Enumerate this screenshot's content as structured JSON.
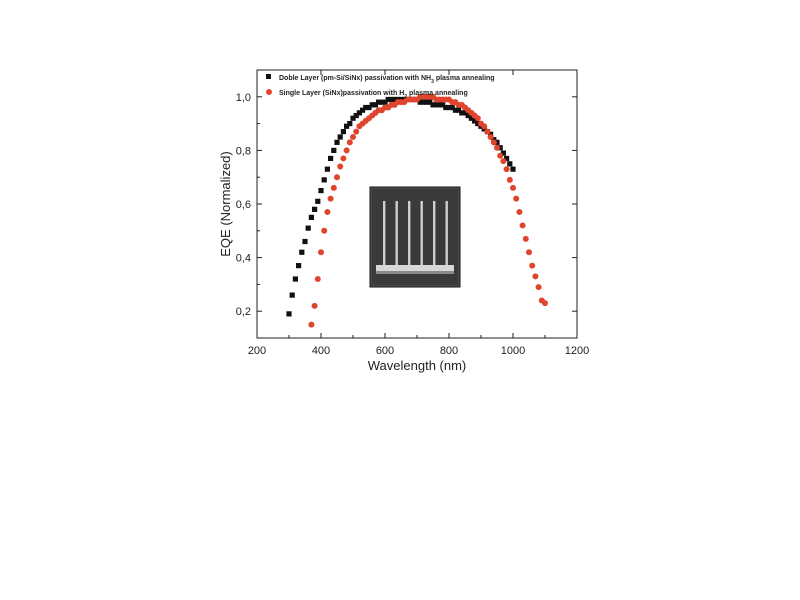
{
  "chart_data": {
    "type": "scatter",
    "title": "",
    "xlabel": "Wavelength (nm)",
    "ylabel": "EQE (Normalized)",
    "xlim": [
      200,
      1200
    ],
    "ylim": [
      0.1,
      1.1
    ],
    "x_ticks": [
      200,
      400,
      600,
      800,
      1000,
      1200
    ],
    "x_tick_labels": [
      "200",
      "400",
      "600",
      "800",
      "1000",
      "1200"
    ],
    "y_ticks": [
      0.2,
      0.4,
      0.6,
      0.8,
      1.0
    ],
    "y_tick_labels": [
      "0,2",
      "0,4",
      "0,6",
      "0,8",
      "1,0"
    ],
    "grid": false,
    "legend_position": "top-left",
    "series": [
      {
        "name_parts": [
          "Doble Layer (pm-Si/SiNx) passivation with NH",
          "3",
          " plasma annealing"
        ],
        "name": "Doble Layer (pm-Si/SiNx) passivation with NH3 plasma annealing",
        "marker": "square",
        "color": "#111111",
        "x": [
          300,
          310,
          320,
          330,
          340,
          350,
          360,
          370,
          380,
          390,
          400,
          410,
          420,
          430,
          440,
          450,
          460,
          470,
          480,
          490,
          500,
          510,
          520,
          530,
          540,
          550,
          560,
          570,
          580,
          590,
          600,
          610,
          620,
          630,
          640,
          650,
          660,
          670,
          680,
          690,
          700,
          710,
          720,
          730,
          740,
          750,
          760,
          770,
          780,
          790,
          800,
          810,
          820,
          830,
          840,
          850,
          860,
          870,
          880,
          890,
          900,
          910,
          920,
          930,
          940,
          950,
          960,
          970,
          980,
          990,
          1000
        ],
        "y": [
          0.19,
          0.26,
          0.32,
          0.37,
          0.42,
          0.46,
          0.51,
          0.55,
          0.58,
          0.61,
          0.65,
          0.69,
          0.73,
          0.77,
          0.8,
          0.83,
          0.85,
          0.87,
          0.89,
          0.9,
          0.92,
          0.93,
          0.94,
          0.95,
          0.96,
          0.96,
          0.97,
          0.97,
          0.98,
          0.98,
          0.98,
          0.99,
          0.99,
          0.99,
          0.99,
          0.99,
          0.99,
          0.99,
          0.99,
          0.99,
          0.99,
          0.98,
          0.98,
          0.98,
          0.98,
          0.97,
          0.97,
          0.97,
          0.97,
          0.96,
          0.96,
          0.96,
          0.95,
          0.95,
          0.94,
          0.94,
          0.93,
          0.92,
          0.91,
          0.9,
          0.89,
          0.88,
          0.87,
          0.86,
          0.84,
          0.83,
          0.81,
          0.79,
          0.77,
          0.75,
          0.73
        ]
      },
      {
        "name_parts": [
          "Single Layer (SiNx)passivation with H",
          "2",
          " plasma annealing"
        ],
        "name": "Single Layer (SiNx)passivation with H2 plasma annealing",
        "marker": "circle",
        "color": "#e0442c",
        "x": [
          370,
          380,
          390,
          400,
          410,
          420,
          430,
          440,
          450,
          460,
          470,
          480,
          490,
          500,
          510,
          520,
          530,
          540,
          550,
          560,
          570,
          580,
          590,
          600,
          610,
          620,
          630,
          640,
          650,
          660,
          670,
          680,
          690,
          700,
          710,
          720,
          730,
          740,
          750,
          760,
          770,
          780,
          790,
          800,
          810,
          820,
          830,
          840,
          850,
          860,
          870,
          880,
          890,
          900,
          910,
          920,
          930,
          940,
          950,
          960,
          970,
          980,
          990,
          1000,
          1010,
          1020,
          1030,
          1040,
          1050,
          1060,
          1070,
          1080,
          1090,
          1100
        ],
        "y": [
          0.15,
          0.22,
          0.32,
          0.42,
          0.5,
          0.57,
          0.62,
          0.66,
          0.7,
          0.74,
          0.77,
          0.8,
          0.83,
          0.85,
          0.87,
          0.89,
          0.9,
          0.91,
          0.92,
          0.93,
          0.94,
          0.95,
          0.95,
          0.96,
          0.96,
          0.97,
          0.97,
          0.98,
          0.98,
          0.98,
          0.99,
          0.99,
          0.99,
          0.99,
          1.0,
          1.0,
          1.0,
          1.0,
          1.0,
          0.99,
          0.99,
          0.99,
          0.99,
          0.99,
          0.98,
          0.98,
          0.97,
          0.97,
          0.96,
          0.95,
          0.94,
          0.93,
          0.92,
          0.9,
          0.89,
          0.87,
          0.85,
          0.83,
          0.81,
          0.78,
          0.76,
          0.73,
          0.69,
          0.66,
          0.62,
          0.57,
          0.52,
          0.47,
          0.42,
          0.37,
          0.33,
          0.29,
          0.24,
          0.23
        ]
      }
    ]
  },
  "inset": {
    "description_icon": "sem-micrograph-icon",
    "background_color": "#3a3a3a",
    "pillar_color": "#cfcfcf"
  }
}
